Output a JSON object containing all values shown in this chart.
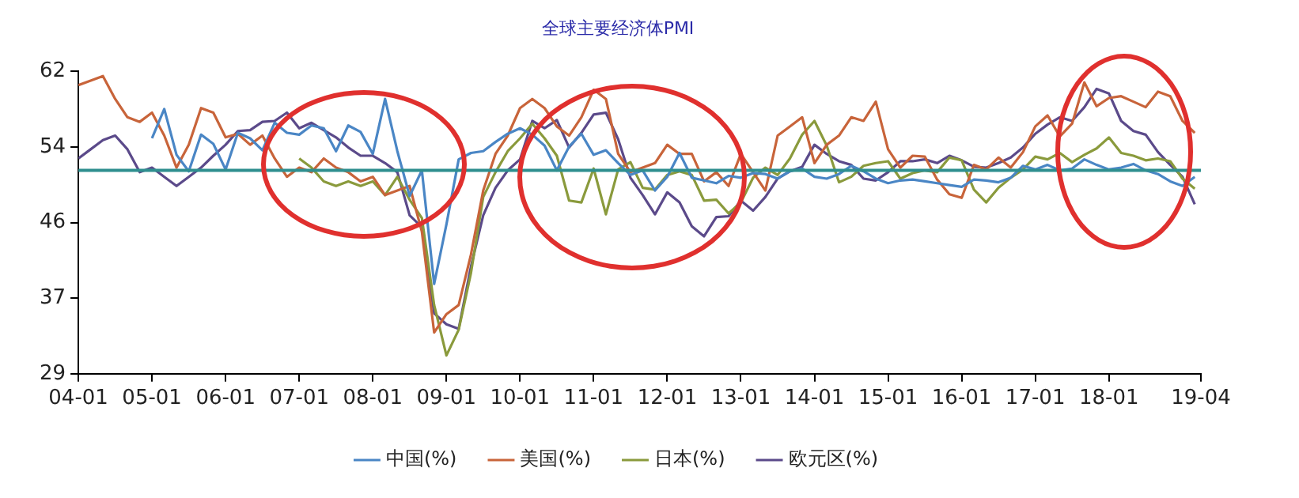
{
  "chart_data": {
    "type": "line",
    "title": "全球主要经济体PMI",
    "marker": "none",
    "legend": "bottom",
    "grid": false,
    "line_style": "solid",
    "x": [
      "2004-01",
      "2004-03",
      "2004-05",
      "2004-07",
      "2004-09",
      "2004-11",
      "2005-01",
      "2005-03",
      "2005-05",
      "2005-07",
      "2005-09",
      "2005-11",
      "2006-01",
      "2006-03",
      "2006-05",
      "2006-07",
      "2006-09",
      "2006-11",
      "2007-01",
      "2007-03",
      "2007-05",
      "2007-07",
      "2007-09",
      "2007-11",
      "2008-01",
      "2008-03",
      "2008-05",
      "2008-07",
      "2008-09",
      "2008-11",
      "2009-01",
      "2009-03",
      "2009-05",
      "2009-07",
      "2009-09",
      "2009-11",
      "2010-01",
      "2010-03",
      "2010-05",
      "2010-07",
      "2010-09",
      "2010-11",
      "2011-01",
      "2011-03",
      "2011-05",
      "2011-07",
      "2011-09",
      "2011-11",
      "2012-01",
      "2012-03",
      "2012-05",
      "2012-07",
      "2012-09",
      "2012-11",
      "2013-01",
      "2013-03",
      "2013-05",
      "2013-07",
      "2013-09",
      "2013-11",
      "2014-01",
      "2014-03",
      "2014-05",
      "2014-07",
      "2014-09",
      "2014-11",
      "2015-01",
      "2015-03",
      "2015-05",
      "2015-07",
      "2015-09",
      "2015-11",
      "2016-01",
      "2016-03",
      "2016-05",
      "2016-07",
      "2016-09",
      "2016-11",
      "2017-01",
      "2017-03",
      "2017-05",
      "2017-07",
      "2017-09",
      "2017-11",
      "2018-01",
      "2018-03",
      "2018-05",
      "2018-07",
      "2018-09",
      "2018-11",
      "2019-01",
      "2019-03"
    ],
    "xlim": [
      "2004-01",
      "2019-04"
    ],
    "xticks": [
      {
        "value": "2004-01",
        "label": "04-01"
      },
      {
        "value": "2005-01",
        "label": "05-01"
      },
      {
        "value": "2006-01",
        "label": "06-01"
      },
      {
        "value": "2007-01",
        "label": "07-01"
      },
      {
        "value": "2008-01",
        "label": "08-01"
      },
      {
        "value": "2009-01",
        "label": "09-01"
      },
      {
        "value": "2010-01",
        "label": "10-01"
      },
      {
        "value": "2011-01",
        "label": "11-01"
      },
      {
        "value": "2012-01",
        "label": "12-01"
      },
      {
        "value": "2013-01",
        "label": "13-01"
      },
      {
        "value": "2014-01",
        "label": "14-01"
      },
      {
        "value": "2015-01",
        "label": "15-01"
      },
      {
        "value": "2016-01",
        "label": "16-01"
      },
      {
        "value": "2017-01",
        "label": "17-01"
      },
      {
        "value": "2018-01",
        "label": "18-01"
      },
      {
        "value": "2019-04",
        "label": "19-04"
      }
    ],
    "ylim": [
      29,
      62
    ],
    "yticks": [
      29,
      {
        "value": 37.25,
        "label": "37"
      },
      {
        "value": 45.5,
        "label": "46"
      },
      {
        "value": 53.75,
        "label": "54"
      },
      62
    ],
    "ref_lines": [
      {
        "axis": "y",
        "value": 51.2,
        "color": "#2f8f8f"
      }
    ],
    "series": [
      {
        "name": "中国(%)",
        "color": "#4a86c5",
        "values": [
          null,
          null,
          null,
          null,
          null,
          null,
          54.7,
          57.9,
          52.9,
          51.1,
          55.1,
          54.1,
          51.3,
          55.3,
          54.7,
          53.4,
          56.4,
          55.3,
          55.1,
          56.1,
          55.8,
          53.3,
          56.1,
          55.4,
          53.0,
          59.0,
          53.3,
          48.4,
          51.2,
          38.8,
          45.3,
          52.4,
          53.1,
          53.3,
          54.3,
          55.2,
          55.8,
          55.1,
          53.9,
          51.2,
          53.8,
          55.2,
          52.9,
          53.4,
          52.0,
          50.7,
          51.2,
          49.0,
          50.5,
          53.1,
          50.4,
          50.1,
          49.8,
          50.6,
          50.4,
          50.9,
          50.8,
          50.3,
          51.1,
          51.4,
          50.5,
          50.3,
          50.8,
          51.7,
          51.1,
          50.3,
          49.8,
          50.1,
          50.2,
          50.0,
          49.8,
          49.6,
          49.4,
          50.2,
          50.1,
          49.9,
          50.4,
          51.7,
          51.3,
          51.8,
          51.2,
          51.4,
          52.4,
          51.8,
          51.3,
          51.5,
          51.9,
          51.2,
          50.8,
          50.0,
          49.5,
          50.5
        ]
      },
      {
        "name": "美国(%)",
        "color": "#c8643a",
        "values": [
          60.5,
          61.0,
          61.5,
          59.0,
          57.0,
          56.5,
          57.5,
          55.0,
          51.5,
          54.0,
          58.0,
          57.5,
          54.8,
          55.2,
          54.0,
          55.0,
          52.5,
          50.5,
          51.5,
          51.0,
          52.5,
          51.5,
          51.0,
          50.0,
          50.5,
          48.5,
          49.0,
          49.5,
          44.5,
          33.5,
          35.5,
          36.5,
          42.0,
          49.0,
          53.0,
          55.0,
          58.0,
          59.0,
          58.0,
          56.0,
          55.0,
          57.0,
          60.0,
          59.0,
          53.0,
          51.0,
          51.5,
          52.0,
          54.0,
          53.0,
          53.0,
          50.0,
          51.0,
          49.5,
          53.0,
          51.0,
          49.0,
          55.0,
          56.0,
          57.0,
          52.0,
          54.0,
          55.0,
          57.0,
          56.6,
          58.7,
          53.5,
          51.5,
          52.8,
          52.7,
          50.2,
          48.6,
          48.2,
          51.8,
          51.3,
          52.6,
          51.5,
          53.2,
          56.0,
          57.2,
          54.9,
          56.3,
          60.8,
          58.2,
          59.1,
          59.3,
          58.7,
          58.1,
          59.8,
          59.3,
          56.6,
          55.3
        ]
      },
      {
        "name": "日本(%)",
        "color": "#8a9a3c",
        "values": [
          null,
          null,
          null,
          null,
          null,
          null,
          null,
          null,
          null,
          null,
          null,
          null,
          null,
          null,
          null,
          null,
          null,
          null,
          52.5,
          51.5,
          50.0,
          49.5,
          50.0,
          49.5,
          50.0,
          48.5,
          50.5,
          48.0,
          46.0,
          36.5,
          31.0,
          33.8,
          40.0,
          48.3,
          51.0,
          53.3,
          54.7,
          56.3,
          54.7,
          52.8,
          47.9,
          47.7,
          51.4,
          46.4,
          51.3,
          52.1,
          49.3,
          49.1,
          50.7,
          51.1,
          50.7,
          47.9,
          48.0,
          46.5,
          47.7,
          50.4,
          51.5,
          50.7,
          52.5,
          55.1,
          56.6,
          53.9,
          49.9,
          50.5,
          51.7,
          52.0,
          52.2,
          50.3,
          50.9,
          51.2,
          51.0,
          52.6,
          52.3,
          49.1,
          47.7,
          49.3,
          50.4,
          51.3,
          52.7,
          52.4,
          53.1,
          52.1,
          52.9,
          53.6,
          54.8,
          53.1,
          52.8,
          52.3,
          52.5,
          52.2,
          50.3,
          49.2
        ]
      },
      {
        "name": "欧元区(%)",
        "color": "#5b4a8a",
        "values": [
          52.5,
          53.5,
          54.5,
          55.0,
          53.5,
          51.0,
          51.5,
          50.5,
          49.5,
          50.5,
          51.5,
          52.8,
          54.0,
          55.5,
          55.6,
          56.5,
          56.6,
          57.5,
          55.8,
          56.4,
          55.6,
          54.8,
          53.7,
          52.8,
          52.8,
          52.0,
          51.0,
          46.3,
          45.0,
          35.6,
          34.4,
          33.9,
          40.7,
          46.3,
          49.3,
          51.2,
          52.4,
          56.6,
          55.8,
          56.7,
          53.7,
          55.3,
          57.3,
          57.5,
          54.6,
          50.4,
          48.5,
          46.4,
          48.8,
          47.7,
          45.1,
          44.0,
          46.1,
          46.2,
          47.9,
          46.8,
          48.3,
          50.3,
          51.1,
          51.6,
          54.0,
          53.0,
          52.2,
          51.8,
          50.3,
          50.1,
          51.0,
          52.2,
          52.2,
          52.4,
          52.0,
          52.8,
          52.3,
          51.6,
          51.5,
          52.0,
          52.6,
          53.7,
          55.2,
          56.2,
          57.0,
          56.6,
          58.1,
          60.1,
          59.6,
          56.6,
          55.5,
          55.1,
          53.2,
          51.8,
          50.5,
          47.5
        ]
      }
    ]
  }
}
